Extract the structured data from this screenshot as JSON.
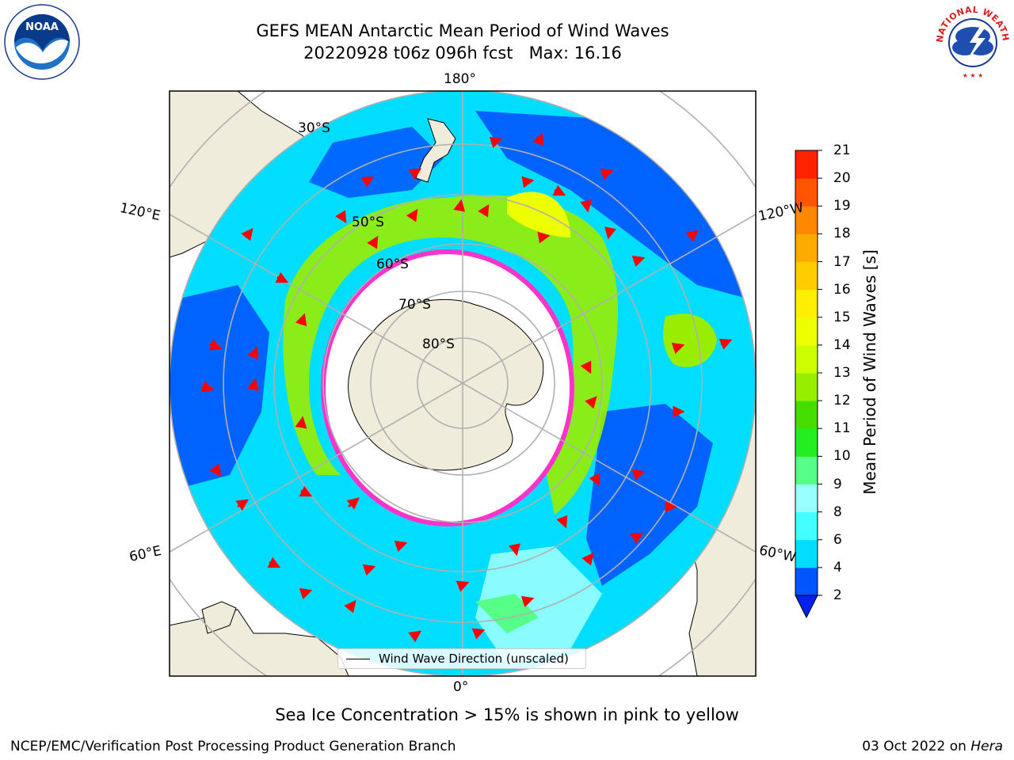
{
  "title": {
    "line1": "GEFS MEAN Antarctic Mean Period of Wind Waves",
    "line2": "20220928 t06z 096h fcst   Max: 16.16"
  },
  "map": {
    "longitude_labels": {
      "top": "180°",
      "bottom": "0°",
      "upper_left": "120°E",
      "upper_right": "120°W",
      "lower_left": "60°E",
      "lower_right": "60°W"
    },
    "latitude_labels": [
      "30°S",
      "50°S",
      "60°S",
      "70°S",
      "80°S"
    ],
    "colors": {
      "land": "#efecdc",
      "ocean_white": "#ffffff",
      "arrow": "#ff0000",
      "grid": "#b0b0b0",
      "sea_ice_edge": "#ff33cc",
      "sea_ice_inner": "#ffcc33"
    }
  },
  "legend": {
    "label": "Wind Wave Direction (unscaled)"
  },
  "colorbar": {
    "label": "Mean Period of Wind Waves [s]",
    "ticks": [
      "2",
      "4",
      "6",
      "8",
      "9",
      "10",
      "11",
      "12",
      "13",
      "14",
      "15",
      "16",
      "17",
      "18",
      "19",
      "20",
      "21"
    ],
    "colors": [
      "#0055ff",
      "#00ddff",
      "#44ffff",
      "#99ffff",
      "#55ff88",
      "#22ee22",
      "#44dd00",
      "#99ee00",
      "#ccff00",
      "#eeff00",
      "#ffee00",
      "#ffcc00",
      "#ffaa00",
      "#ff8800",
      "#ff5500",
      "#ff2200",
      "#ff0000"
    ],
    "extend_min_color": "#0022ee"
  },
  "note": "Sea Ice Concentration > 15% is shown in pink to yellow",
  "footer": {
    "credit": "NCEP/EMC/Verification Post Processing Product Generation Branch",
    "date": "03 Oct 2022",
    "on_word": "on",
    "machine": "Hera"
  },
  "logos": {
    "noaa": "NOAA",
    "nws_text": "NATIONAL WEATHER SERVICE"
  }
}
